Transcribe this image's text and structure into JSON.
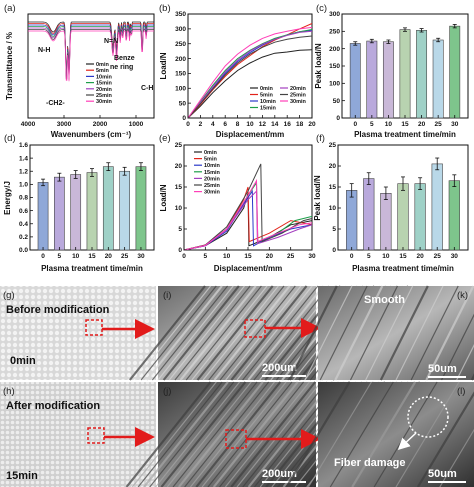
{
  "colors": {
    "0min": "#222222",
    "5min": "#e2231a",
    "10min": "#2a39c9",
    "15min": "#1e9e4a",
    "20min": "#a43fbf",
    "25min": "#444444",
    "30min": "#ff3fb8",
    "arrow": "#e21b1b",
    "bars": [
      "#8fa8d8",
      "#b9a9dc",
      "#c9b8d8",
      "#b8d3b0",
      "#9fd1c7",
      "#b9d8e8",
      "#7ec58c"
    ]
  },
  "labels": {
    "a": "(a)",
    "b": "(b)",
    "c": "(c)",
    "d": "(d)",
    "e": "(e)",
    "f": "(f)",
    "g": "(g)",
    "h": "(h)",
    "i": "(i)",
    "j": "(j)",
    "k": "(k)",
    "l": "(l)"
  },
  "series_names": [
    "0min",
    "5min",
    "10min",
    "15min",
    "20min",
    "25min",
    "30min"
  ],
  "chart_data": [
    {
      "panel": "a",
      "type": "line",
      "xlabel": "Wavenumbers (cm⁻¹)",
      "ylabel": "Transmittance / %",
      "xlim": [
        4000,
        500
      ],
      "xticks": [
        4000,
        3000,
        2000,
        1000
      ],
      "annotations": [
        "N-H",
        "-CH2-",
        "N=N",
        "Benze ne ring",
        "C-H"
      ],
      "legend": [
        "0min",
        "5min",
        "10min",
        "15min",
        "20min",
        "25min",
        "30min"
      ]
    },
    {
      "panel": "b",
      "type": "line",
      "xlabel": "Displacement/mm",
      "ylabel": "Load/N",
      "xlim": [
        0,
        20
      ],
      "ylim": [
        0,
        350
      ],
      "xticks": [
        0,
        2,
        4,
        6,
        8,
        10,
        12,
        14,
        16,
        18,
        20
      ],
      "yticks": [
        0,
        50,
        100,
        150,
        200,
        250,
        300,
        350
      ],
      "legend": [
        "0min",
        "5min",
        "10min",
        "15min",
        "20min",
        "25min",
        "30min"
      ],
      "series": [
        {
          "name": "0min",
          "points": [
            [
              0,
              0
            ],
            [
              2,
              40
            ],
            [
              4,
              85
            ],
            [
              6,
              125
            ],
            [
              8,
              160
            ],
            [
              10,
              185
            ],
            [
              12,
              205
            ],
            [
              14,
              218
            ],
            [
              16,
              222
            ],
            [
              18,
              228
            ],
            [
              20,
              230
            ]
          ]
        },
        {
          "name": "5min",
          "points": [
            [
              0,
              0
            ],
            [
              2,
              45
            ],
            [
              4,
              95
            ],
            [
              6,
              140
            ],
            [
              8,
              180
            ],
            [
              10,
              210
            ],
            [
              12,
              240
            ],
            [
              14,
              262
            ],
            [
              16,
              280
            ],
            [
              18,
              300
            ],
            [
              20,
              318
            ]
          ]
        },
        {
          "name": "10min",
          "points": [
            [
              0,
              0
            ],
            [
              2,
              50
            ],
            [
              4,
              100
            ],
            [
              6,
              150
            ],
            [
              8,
              190
            ],
            [
              10,
              220
            ],
            [
              12,
              245
            ],
            [
              14,
              265
            ],
            [
              16,
              280
            ],
            [
              18,
              290
            ],
            [
              20,
              295
            ]
          ]
        },
        {
          "name": "15min",
          "points": [
            [
              0,
              0
            ],
            [
              2,
              55
            ],
            [
              4,
              110
            ],
            [
              6,
              160
            ],
            [
              8,
              200
            ],
            [
              10,
              228
            ],
            [
              12,
              250
            ],
            [
              14,
              268
            ],
            [
              16,
              280
            ],
            [
              18,
              290
            ],
            [
              20,
              298
            ]
          ]
        },
        {
          "name": "20min",
          "points": [
            [
              0,
              0
            ],
            [
              2,
              52
            ],
            [
              4,
              105
            ],
            [
              6,
              155
            ],
            [
              8,
              195
            ],
            [
              10,
              225
            ],
            [
              12,
              248
            ],
            [
              14,
              265
            ],
            [
              16,
              278
            ],
            [
              18,
              288
            ],
            [
              20,
              292
            ]
          ]
        },
        {
          "name": "25min",
          "points": [
            [
              0,
              0
            ],
            [
              2,
              48
            ],
            [
              4,
              98
            ],
            [
              6,
              145
            ],
            [
              8,
              185
            ],
            [
              10,
              215
            ],
            [
              12,
              238
            ],
            [
              14,
              255
            ],
            [
              16,
              265
            ],
            [
              18,
              272
            ],
            [
              20,
              276
            ]
          ]
        },
        {
          "name": "30min",
          "points": [
            [
              0,
              0
            ],
            [
              2,
              60
            ],
            [
              4,
              120
            ],
            [
              6,
              175
            ],
            [
              8,
              215
            ],
            [
              10,
              245
            ],
            [
              12,
              268
            ],
            [
              14,
              283
            ],
            [
              16,
              292
            ],
            [
              18,
              300
            ],
            [
              20,
              305
            ]
          ]
        }
      ]
    },
    {
      "panel": "c",
      "type": "bar",
      "xlabel": "Plasma treatment time/min",
      "ylabel": "Peak load/N",
      "categories": [
        "0",
        "5",
        "10",
        "15",
        "20",
        "25",
        "30"
      ],
      "values": [
        215,
        222,
        220,
        255,
        253,
        225,
        265
      ],
      "errors": [
        5,
        5,
        5,
        5,
        5,
        5,
        5
      ],
      "ylim": [
        0,
        300
      ],
      "yticks": [
        0,
        50,
        100,
        150,
        200,
        250,
        300
      ]
    },
    {
      "panel": "d",
      "type": "bar",
      "xlabel": "Plasma treatment time/min",
      "ylabel": "Energy/J",
      "categories": [
        "0",
        "5",
        "10",
        "15",
        "20",
        "25",
        "30"
      ],
      "values": [
        1.03,
        1.11,
        1.15,
        1.18,
        1.27,
        1.2,
        1.27
      ],
      "errors": [
        0.05,
        0.06,
        0.06,
        0.06,
        0.06,
        0.06,
        0.06
      ],
      "ylim": [
        0,
        1.6
      ],
      "yticks": [
        0.0,
        0.2,
        0.4,
        0.6,
        0.8,
        1.0,
        1.2,
        1.4,
        1.6
      ]
    },
    {
      "panel": "e",
      "type": "line",
      "xlabel": "Displacement/mm",
      "ylabel": "Load/N",
      "xlim": [
        0,
        30
      ],
      "ylim": [
        0,
        25
      ],
      "xticks": [
        0,
        5,
        10,
        15,
        20,
        25,
        30
      ],
      "yticks": [
        0,
        5,
        10,
        15,
        20,
        25
      ],
      "legend": [
        "0min",
        "5min",
        "10min",
        "15min",
        "20min",
        "25min",
        "30min"
      ],
      "series": [
        {
          "name": "0min",
          "points": [
            [
              0,
              0
            ],
            [
              5,
              1
            ],
            [
              10,
              4
            ],
            [
              14,
              10
            ],
            [
              15,
              13.5
            ],
            [
              15.2,
              1
            ],
            [
              20,
              3
            ],
            [
              25,
              6
            ],
            [
              30,
              7
            ]
          ]
        },
        {
          "name": "5min",
          "points": [
            [
              0,
              0
            ],
            [
              5,
              1.2
            ],
            [
              10,
              5
            ],
            [
              14,
              12
            ],
            [
              15,
              15
            ],
            [
              15.3,
              2
            ],
            [
              20,
              4
            ],
            [
              25,
              7
            ],
            [
              30,
              6
            ]
          ]
        },
        {
          "name": "10min",
          "points": [
            [
              0,
              0
            ],
            [
              5,
              1
            ],
            [
              10,
              4.5
            ],
            [
              14,
              11
            ],
            [
              16,
              14
            ],
            [
              16.3,
              1
            ],
            [
              20,
              3
            ],
            [
              25,
              5
            ],
            [
              30,
              6
            ]
          ]
        },
        {
          "name": "15min",
          "points": [
            [
              0,
              0
            ],
            [
              5,
              1.1
            ],
            [
              10,
              5
            ],
            [
              15,
              13
            ],
            [
              17,
              16
            ],
            [
              17.3,
              2
            ],
            [
              22,
              4
            ],
            [
              26,
              7
            ],
            [
              30,
              8
            ]
          ]
        },
        {
          "name": "20min",
          "points": [
            [
              0,
              0
            ],
            [
              5,
              1
            ],
            [
              10,
              4.8
            ],
            [
              15,
              12
            ],
            [
              17,
              14
            ],
            [
              17.2,
              1.5
            ],
            [
              22,
              3
            ],
            [
              27,
              5
            ],
            [
              30,
              6
            ]
          ]
        },
        {
          "name": "25min",
          "points": [
            [
              0,
              0
            ],
            [
              5,
              1.2
            ],
            [
              10,
              5.5
            ],
            [
              15,
              14
            ],
            [
              18,
              20.5
            ],
            [
              18.3,
              2
            ],
            [
              23,
              4
            ],
            [
              28,
              7
            ],
            [
              30,
              7.5
            ]
          ]
        },
        {
          "name": "30min",
          "points": [
            [
              0,
              0
            ],
            [
              5,
              1.1
            ],
            [
              10,
              5
            ],
            [
              15,
              13
            ],
            [
              17,
              16.5
            ],
            [
              17.3,
              2
            ],
            [
              22,
              4
            ],
            [
              27,
              6
            ],
            [
              30,
              6.5
            ]
          ]
        }
      ]
    },
    {
      "panel": "f",
      "type": "bar",
      "xlabel": "Plasma treatment time/min",
      "ylabel": "Peak load/N",
      "categories": [
        "0",
        "5",
        "10",
        "15",
        "20",
        "25",
        "30"
      ],
      "values": [
        14.2,
        17.0,
        13.5,
        15.8,
        15.8,
        20.5,
        16.5
      ],
      "errors": [
        1.6,
        1.4,
        1.5,
        1.6,
        1.4,
        1.4,
        1.4
      ],
      "ylim": [
        0,
        25
      ],
      "yticks": [
        0,
        5,
        10,
        15,
        20,
        25
      ]
    }
  ],
  "images": {
    "g": {
      "title": "Before modification",
      "corner": "0min"
    },
    "h": {
      "title": "After modification",
      "corner": "15min"
    },
    "i": {
      "scale": "200um"
    },
    "j": {
      "scale": "200um"
    },
    "k": {
      "title": "Smooth",
      "scale": "50um"
    },
    "l": {
      "title": "Fiber damage",
      "scale": "50um"
    }
  }
}
